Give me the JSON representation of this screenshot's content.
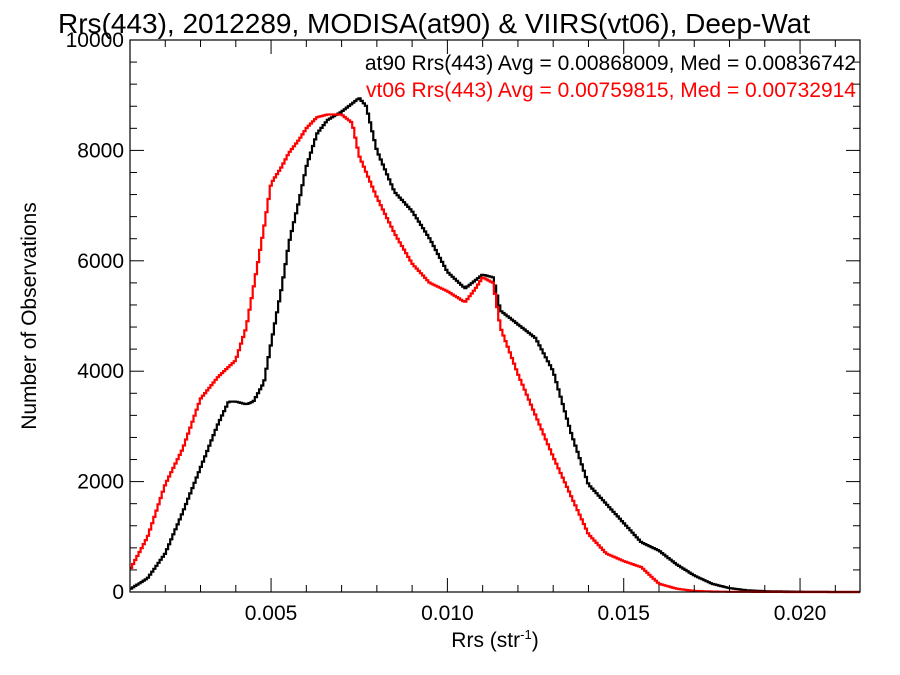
{
  "chart_data": {
    "type": "line",
    "title": "Rrs(443), 2012289, MODISA(at90) & VIIRS(vt06), Deep-Wat",
    "xlabel": "Rrs (str",
    "xlabel_sup": "-1",
    "xlabel_close": ")",
    "ylabel": "Number of Observations",
    "xlim": [
      0.001,
      0.0217
    ],
    "ylim": [
      0,
      10000
    ],
    "x_ticks": [
      0.005,
      0.01,
      0.015,
      0.02
    ],
    "x_tick_labels": [
      "0.005",
      "0.010",
      "0.015",
      "0.020"
    ],
    "y_ticks": [
      0,
      2000,
      4000,
      6000,
      8000,
      10000
    ],
    "y_tick_labels": [
      "0",
      "2000",
      "4000",
      "6000",
      "8000",
      "10000"
    ],
    "grid": false,
    "legend_position": "top-right",
    "series": [
      {
        "legend": "at90 Rrs(443) Avg = 0.00868009, Med = 0.00836742",
        "color": "#000000",
        "x": [
          0.001,
          0.0015,
          0.002,
          0.0025,
          0.003,
          0.0035,
          0.0038,
          0.004,
          0.0043,
          0.0045,
          0.0048,
          0.005,
          0.0053,
          0.0055,
          0.0058,
          0.006,
          0.0063,
          0.0066,
          0.007,
          0.0073,
          0.0075,
          0.0077,
          0.008,
          0.0085,
          0.009,
          0.0095,
          0.01,
          0.0105,
          0.011,
          0.0113,
          0.0115,
          0.012,
          0.0125,
          0.013,
          0.0135,
          0.014,
          0.0145,
          0.015,
          0.0155,
          0.016,
          0.0165,
          0.017,
          0.0175,
          0.018,
          0.0185,
          0.019,
          0.02,
          0.021,
          0.0217
        ],
        "y": [
          50,
          250,
          700,
          1450,
          2250,
          3050,
          3450,
          3450,
          3400,
          3450,
          3800,
          4500,
          5500,
          6300,
          7100,
          7700,
          8300,
          8550,
          8700,
          8850,
          8950,
          8800,
          8000,
          7250,
          6900,
          6400,
          5800,
          5500,
          5750,
          5700,
          5100,
          4850,
          4600,
          4000,
          2900,
          1950,
          1600,
          1250,
          900,
          750,
          500,
          300,
          150,
          70,
          30,
          15,
          5,
          0,
          0
        ]
      },
      {
        "legend": "vt06 Rrs(443) Avg = 0.00759815, Med = 0.00732914",
        "color": "#ff0000",
        "x": [
          0.001,
          0.0015,
          0.002,
          0.0025,
          0.003,
          0.0035,
          0.004,
          0.0043,
          0.0045,
          0.0048,
          0.005,
          0.0053,
          0.0055,
          0.0058,
          0.006,
          0.0063,
          0.0066,
          0.007,
          0.0073,
          0.0075,
          0.008,
          0.0085,
          0.009,
          0.0095,
          0.01,
          0.0105,
          0.0108,
          0.011,
          0.0113,
          0.0115,
          0.012,
          0.0125,
          0.013,
          0.0135,
          0.014,
          0.0145,
          0.015,
          0.0155,
          0.016,
          0.0165,
          0.017,
          0.0175,
          0.018,
          0.019,
          0.02,
          0.021,
          0.0217
        ],
        "y": [
          400,
          1000,
          1950,
          2600,
          3500,
          3900,
          4200,
          4800,
          5500,
          6600,
          7400,
          7700,
          7950,
          8200,
          8400,
          8600,
          8650,
          8650,
          8500,
          7900,
          7150,
          6500,
          5950,
          5600,
          5450,
          5250,
          5500,
          5700,
          5600,
          4800,
          3950,
          3200,
          2450,
          1750,
          1050,
          700,
          560,
          450,
          150,
          60,
          20,
          8,
          4,
          2,
          0,
          0,
          0
        ]
      }
    ]
  }
}
